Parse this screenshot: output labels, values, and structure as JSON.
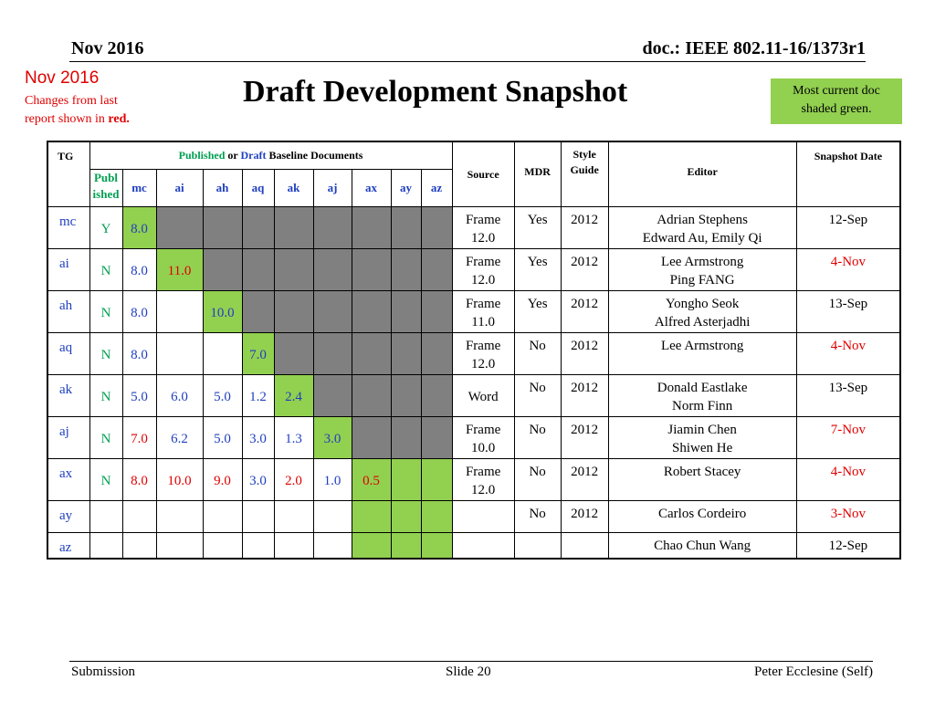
{
  "header": {
    "date": "Nov 2016",
    "doc": "doc.: IEEE 802.11-16/1373r1"
  },
  "changes_note": {
    "date": "Nov 2016",
    "line1": "Changes from  last",
    "line2_pre": "report shown in ",
    "line2_red": "red."
  },
  "title": "Draft Development Snapshot",
  "green_note": {
    "line1": "Most current doc",
    "line2": "shaded green."
  },
  "table": {
    "h_tg": "TG",
    "h_pub_word": "Published",
    "h_or": " or ",
    "h_draft_word": "Draft",
    "h_baseline": " Baseline Documents",
    "h_source": "Source",
    "h_mdr": "MDR",
    "h_style1": "Style",
    "h_style2": "Guide",
    "h_editor": "Editor",
    "h_date": "Snapshot Date",
    "h_publ1": "Publ",
    "h_publ2": "ished",
    "cols": [
      "mc",
      "ai",
      "ah",
      "aq",
      "ak",
      "aj",
      "ax",
      "ay",
      "az"
    ],
    "rows": [
      {
        "tg": "mc",
        "pub": "Y",
        "v": [
          "8.0",
          "",
          "",
          "",
          "",
          "",
          "",
          "",
          ""
        ],
        "src1": "Frame",
        "src2": "12.0",
        "mdr": "Yes",
        "style": "2012",
        "ed1": "Adrian Stephens",
        "ed2": "Edward Au, Emily Qi",
        "date": "12-Sep"
      },
      {
        "tg": "ai",
        "pub": "N",
        "v": [
          "8.0",
          "11.0",
          "",
          "",
          "",
          "",
          "",
          "",
          ""
        ],
        "src1": "Frame",
        "src2": "12.0",
        "mdr": "Yes",
        "style": "2012",
        "ed1": "Lee Armstrong",
        "ed2": "Ping FANG",
        "date": "4-Nov"
      },
      {
        "tg": "ah",
        "pub": "N",
        "v": [
          "8.0",
          "",
          "10.0",
          "",
          "",
          "",
          "",
          "",
          ""
        ],
        "src1": "Frame",
        "src2": "11.0",
        "mdr": "Yes",
        "style": "2012",
        "ed1": "Yongho Seok",
        "ed2": "Alfred Asterjadhi",
        "date": "13-Sep"
      },
      {
        "tg": "aq",
        "pub": "N",
        "v": [
          "8.0",
          "",
          "",
          "7.0",
          "",
          "",
          "",
          "",
          ""
        ],
        "src1": "Frame",
        "src2": "12.0",
        "mdr": "No",
        "style": "2012",
        "ed1": "Lee Armstrong",
        "ed2": "",
        "date": "4-Nov"
      },
      {
        "tg": "ak",
        "pub": "N",
        "v": [
          "5.0",
          "6.0",
          "5.0",
          "1.2",
          "2.4",
          "",
          "",
          "",
          ""
        ],
        "src1": "Word",
        "src2": "",
        "mdr": "No",
        "style": "2012",
        "ed1": "Donald Eastlake",
        "ed2": "Norm Finn",
        "date": "13-Sep"
      },
      {
        "tg": "aj",
        "pub": "N",
        "v": [
          "7.0",
          "6.2",
          "5.0",
          "3.0",
          "1.3",
          "3.0",
          "",
          "",
          ""
        ],
        "src1": "Frame",
        "src2": "10.0",
        "mdr": "No",
        "style": "2012",
        "ed1": "Jiamin Chen",
        "ed2": "Shiwen He",
        "date": "7-Nov"
      },
      {
        "tg": "ax",
        "pub": "N",
        "v": [
          "8.0",
          "10.0",
          "9.0",
          "3.0",
          "2.0",
          "1.0",
          "0.5",
          "",
          ""
        ],
        "src1": "Frame",
        "src2": "12.0",
        "mdr": "No",
        "style": "2012",
        "ed1": "Robert Stacey",
        "ed2": "",
        "date": "4-Nov"
      },
      {
        "tg": "ay",
        "pub": "",
        "v": [
          "",
          "",
          "",
          "",
          "",
          "",
          "",
          "",
          ""
        ],
        "src1": "",
        "src2": "",
        "mdr": "No",
        "style": "2012",
        "ed1": "Carlos Cordeiro",
        "ed2": "",
        "date": "3-Nov"
      },
      {
        "tg": "az",
        "pub": "",
        "v": [
          "",
          "",
          "",
          "",
          "",
          "",
          "",
          "",
          ""
        ],
        "src1": "",
        "src2": "",
        "mdr": "",
        "style": "",
        "ed1": "Chao Chun Wang",
        "ed2": "",
        "date": "12-Sep"
      }
    ]
  },
  "colors": {
    "green": "#92d050",
    "gray": "#808080",
    "red": "#e00000",
    "blue": "#1f3fbf"
  },
  "footer": {
    "left": "Submission",
    "center": "Slide 20",
    "right": "Peter Ecclesine (Self)"
  }
}
